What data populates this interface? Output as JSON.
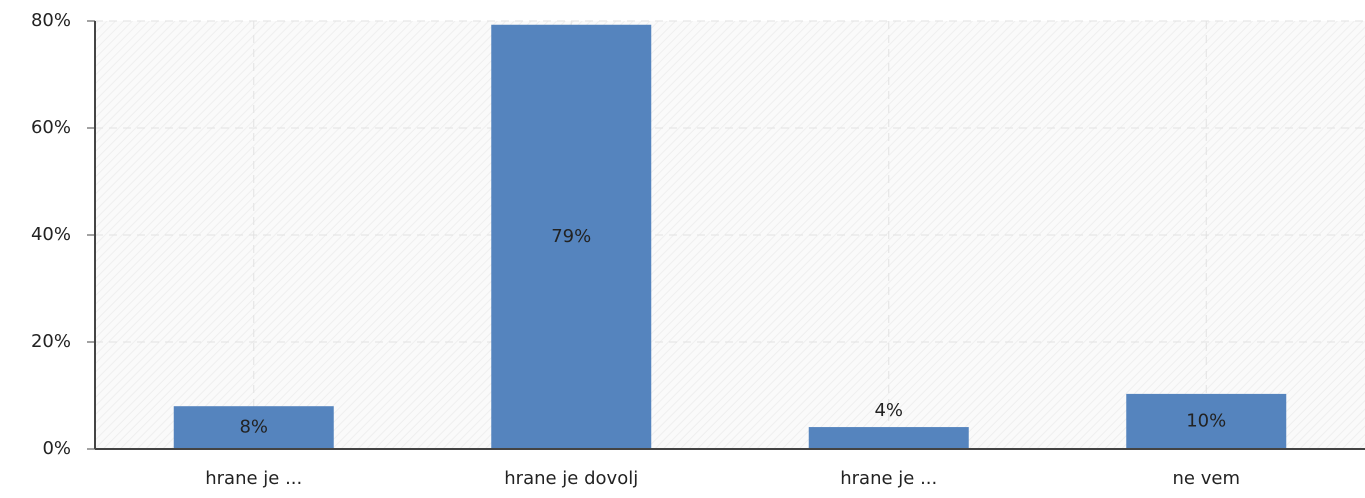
{
  "chart_data": {
    "type": "bar",
    "categories": [
      "hrane je ...",
      "hrane je dovolj",
      "hrane je ...",
      "ne vem"
    ],
    "values": [
      8.0,
      79.3,
      4.1,
      10.3
    ],
    "value_labels": [
      "8%",
      "79%",
      "4%",
      "10%"
    ],
    "color": "#5584be",
    "ylim": [
      0,
      80
    ],
    "yticks": [
      {
        "value": 0,
        "label": "0%"
      },
      {
        "value": 20,
        "label": "20%"
      },
      {
        "value": 40,
        "label": "40%"
      },
      {
        "value": 60,
        "label": "60%"
      },
      {
        "value": 80,
        "label": "80%"
      }
    ],
    "grid": true
  }
}
